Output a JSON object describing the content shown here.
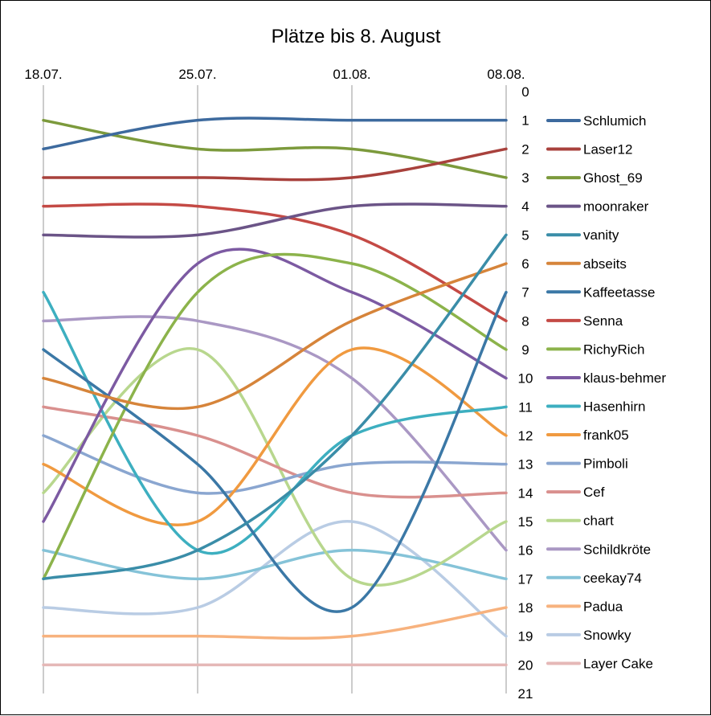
{
  "chart_data": {
    "type": "line",
    "title": "Plätze bis 8. August",
    "x": [
      "18.07.",
      "25.07.",
      "01.08.",
      "08.08."
    ],
    "y_ticks": [
      "0",
      "1",
      "2",
      "3",
      "4",
      "5",
      "6",
      "7",
      "8",
      "9",
      "10",
      "11",
      "12",
      "13",
      "14",
      "15",
      "16",
      "17",
      "18",
      "19",
      "20",
      "21"
    ],
    "ylim": [
      0,
      21
    ],
    "y_reversed": true,
    "x_axis_position": "top",
    "y_axis_position": "right",
    "grid": "vertical",
    "smooth": true,
    "legend_position": "right",
    "series": [
      {
        "name": "Schlumich",
        "color": "#3D6A9E",
        "values": [
          2,
          1,
          1,
          1
        ]
      },
      {
        "name": "Laser12",
        "color": "#A8413C",
        "values": [
          3,
          3,
          3,
          2
        ]
      },
      {
        "name": "Ghost_69",
        "color": "#7C9A3C",
        "values": [
          1,
          2,
          2,
          3
        ]
      },
      {
        "name": "moonraker",
        "color": "#6B5487",
        "values": [
          5,
          5,
          4,
          4
        ]
      },
      {
        "name": "vanity",
        "color": "#3A8DA8",
        "values": [
          17,
          16,
          12,
          5
        ]
      },
      {
        "name": "abseits",
        "color": "#D6843A",
        "values": [
          10,
          11,
          8,
          6
        ]
      },
      {
        "name": "Kaffeetasse",
        "color": "#3B78A6",
        "values": [
          9,
          13,
          18,
          7
        ]
      },
      {
        "name": "Senna",
        "color": "#C44A45",
        "values": [
          4,
          4,
          5,
          8
        ]
      },
      {
        "name": "RichyRich",
        "color": "#8CB34B",
        "values": [
          17,
          7,
          6,
          9
        ]
      },
      {
        "name": "klaus-behmer",
        "color": "#7C5AA2",
        "values": [
          15,
          6,
          7,
          10
        ]
      },
      {
        "name": "Hasenhirn",
        "color": "#3DAFC0",
        "values": [
          7,
          16,
          12,
          11
        ]
      },
      {
        "name": "frank05",
        "color": "#F09A40",
        "values": [
          13,
          15,
          9,
          12
        ]
      },
      {
        "name": "Pimboli",
        "color": "#8AA6D0",
        "values": [
          12,
          14,
          13,
          13
        ]
      },
      {
        "name": "Cef",
        "color": "#D9908E",
        "values": [
          11,
          12,
          14,
          14
        ]
      },
      {
        "name": "chart",
        "color": "#B8D78E",
        "values": [
          14,
          9,
          17,
          15
        ]
      },
      {
        "name": "Schildkröte",
        "color": "#AA98C4",
        "values": [
          8,
          8,
          10,
          16
        ]
      },
      {
        "name": "ceekay74",
        "color": "#85C3D8",
        "values": [
          16,
          17,
          16,
          17
        ]
      },
      {
        "name": "Padua",
        "color": "#F7B27E",
        "values": [
          19,
          19,
          19,
          18
        ]
      },
      {
        "name": "Snowky",
        "color": "#B9CCE4",
        "values": [
          18,
          18,
          15,
          19
        ]
      },
      {
        "name": "Layer Cake",
        "color": "#E5B8B7",
        "values": [
          20,
          20,
          20,
          20
        ]
      }
    ]
  }
}
